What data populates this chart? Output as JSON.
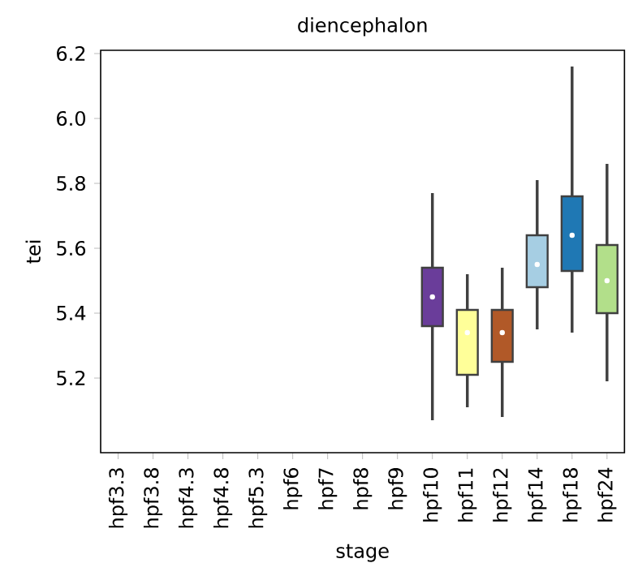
{
  "chart_data": {
    "type": "box",
    "title": "diencephalon",
    "xlabel": "stage",
    "ylabel": "tei",
    "categories": [
      "hpf3.3",
      "hpf3.8",
      "hpf4.3",
      "hpf4.8",
      "hpf5.3",
      "hpf6",
      "hpf7",
      "hpf8",
      "hpf9",
      "hpf10",
      "hpf11",
      "hpf12",
      "hpf14",
      "hpf18",
      "hpf24"
    ],
    "colors": [
      null,
      null,
      null,
      null,
      null,
      null,
      null,
      null,
      null,
      "#6a3d9a",
      "#ffff99",
      "#b15928",
      "#a6cee3",
      "#1f78b4",
      "#b2df8a"
    ],
    "boxes": [
      null,
      null,
      null,
      null,
      null,
      null,
      null,
      null,
      null,
      {
        "low": 5.07,
        "q1": 5.36,
        "median": 5.45,
        "q3": 5.54,
        "high": 5.77
      },
      {
        "low": 5.11,
        "q1": 5.21,
        "median": 5.34,
        "q3": 5.41,
        "high": 5.52
      },
      {
        "low": 5.08,
        "q1": 5.25,
        "median": 5.34,
        "q3": 5.41,
        "high": 5.54
      },
      {
        "low": 5.35,
        "q1": 5.48,
        "median": 5.55,
        "q3": 5.64,
        "high": 5.81
      },
      {
        "low": 5.34,
        "q1": 5.53,
        "median": 5.64,
        "q3": 5.76,
        "high": 6.16
      },
      {
        "low": 5.19,
        "q1": 5.4,
        "median": 5.5,
        "q3": 5.61,
        "high": 5.86
      }
    ],
    "ylim": [
      4.97,
      6.21
    ],
    "yticks": [
      5.2,
      5.4,
      5.6,
      5.8,
      {
        "value": 6,
        "label": "6.0"
      },
      6.2
    ]
  }
}
